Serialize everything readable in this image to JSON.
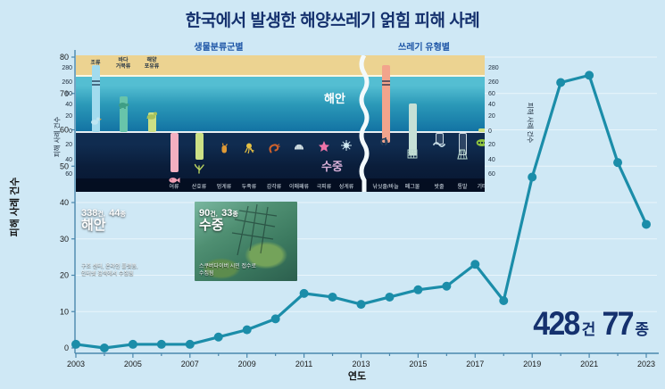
{
  "title": "한국에서 발생한 해양쓰레기 얽힘 피해 사례",
  "colors": {
    "background": "#cfe8f5",
    "title": "#15316e",
    "line": "#1b8da9",
    "axis": "#4a87ad",
    "panel_title": "#1d55a6",
    "coast_text": "#ffffff",
    "underwater_text": "#d9b0d8",
    "totals_text": "#15316e"
  },
  "chart_data": [
    {
      "id": "main",
      "type": "line",
      "title": "한국에서 발생한 해양쓰레기 얽힘 피해 사례",
      "xlabel": "연도",
      "ylabel": "피해 사례 건수",
      "x": [
        2003,
        2004,
        2005,
        2006,
        2007,
        2008,
        2009,
        2010,
        2011,
        2012,
        2013,
        2014,
        2015,
        2016,
        2017,
        2018,
        2019,
        2020,
        2021,
        2022,
        2023
      ],
      "values": [
        1,
        0,
        1,
        1,
        1,
        3,
        5,
        8,
        15,
        14,
        12,
        14,
        16,
        17,
        23,
        13,
        47,
        73,
        75,
        51,
        34
      ],
      "ylim": [
        0,
        80
      ],
      "yticks": [
        0,
        10,
        20,
        30,
        40,
        50,
        60,
        70,
        80
      ],
      "labeled_years": [
        2003,
        2005,
        2007,
        2009,
        2011,
        2013,
        2015,
        2017,
        2019,
        2021,
        2023
      ],
      "grid": true,
      "legend": "none",
      "line_color": "#1b8da9"
    },
    {
      "id": "inset",
      "type": "bar",
      "title": "해양쓰레기 얽힘 피해 구성",
      "broken_y_axis_ticks": [
        "280",
        "260",
        "60",
        "40",
        "20",
        "0",
        "20",
        "40",
        "60"
      ],
      "ylabel_left": "피해 사례 건수",
      "ylabel_right": "피해 사례 건수",
      "zones": {
        "coast": "해안",
        "underwater": "수중"
      },
      "panels": [
        {
          "title": "생물분류군별",
          "coast_bars": [
            {
              "label": "조류",
              "value": 285,
              "color": "#a2dbee",
              "icon": "bird"
            },
            {
              "label": "바다\n거북류",
              "value": 55,
              "color": "#68c4aa",
              "icon": "turtle"
            },
            {
              "label": "해양\n포유류",
              "value": 30,
              "color": "#cce085",
              "icon": "seal"
            }
          ],
          "underwater_bars": [
            {
              "label": "어류",
              "value": 55,
              "color": "#f3afc0",
              "icon": "fish"
            },
            {
              "label": "산호류",
              "value": 38,
              "color": "#cce085",
              "icon": "coral"
            },
            {
              "label": "멍게류",
              "value": 10,
              "color": "#e09a36",
              "icon": "seasquirt"
            },
            {
              "label": "두족류",
              "value": 10,
              "color": "#e3bf44",
              "icon": "octopus"
            },
            {
              "label": "갑각류",
              "value": 10,
              "color": "#d2622b",
              "icon": "shrimp"
            },
            {
              "label": "이매패류",
              "value": 8,
              "color": "#d8e4e8",
              "icon": "clam"
            },
            {
              "label": "극피류",
              "value": 8,
              "color": "#ee74a8",
              "icon": "starfish"
            },
            {
              "label": "성게류",
              "value": 6,
              "color": "#cfe8f2",
              "icon": "urchin"
            }
          ]
        },
        {
          "title": "쓰레기 유형별",
          "bars": [
            {
              "label": "낚싯줄/바늘",
              "above": 285,
              "below": 15,
              "color": "#f2a48c",
              "icon": "hook"
            },
            {
              "label": "폐그물",
              "above": 45,
              "below": 32,
              "color": "#c6e0d6",
              "icon": "net"
            },
            {
              "label": "밧줄",
              "above": 0,
              "below": 15,
              "color": "outline",
              "icon": "rope"
            },
            {
              "label": "통발",
              "above": 0,
              "below": 30,
              "color": "outline",
              "icon": "trap"
            },
            {
              "label": "기타",
              "above": 6,
              "below": 0,
              "color": "#cde07e",
              "icon": "dots"
            }
          ]
        }
      ]
    }
  ],
  "photos": [
    {
      "cases": "338",
      "cases_unit": "건,",
      "species": "44",
      "species_unit": "종",
      "zone": "해안",
      "caption_line1": "구조 센터, 온라인 플랫폼,",
      "caption_line2": "인터넷 검색에서 수집됨"
    },
    {
      "cases": "90",
      "cases_unit": "건,",
      "species": "33",
      "species_unit": "종",
      "zone": "수중",
      "caption_line1": "스쿠버다이버 시민 접수로",
      "caption_line2": "수집됨"
    }
  ],
  "totals": {
    "cases_value": "428",
    "cases_unit": "건",
    "species_value": "77",
    "species_unit": "종"
  }
}
